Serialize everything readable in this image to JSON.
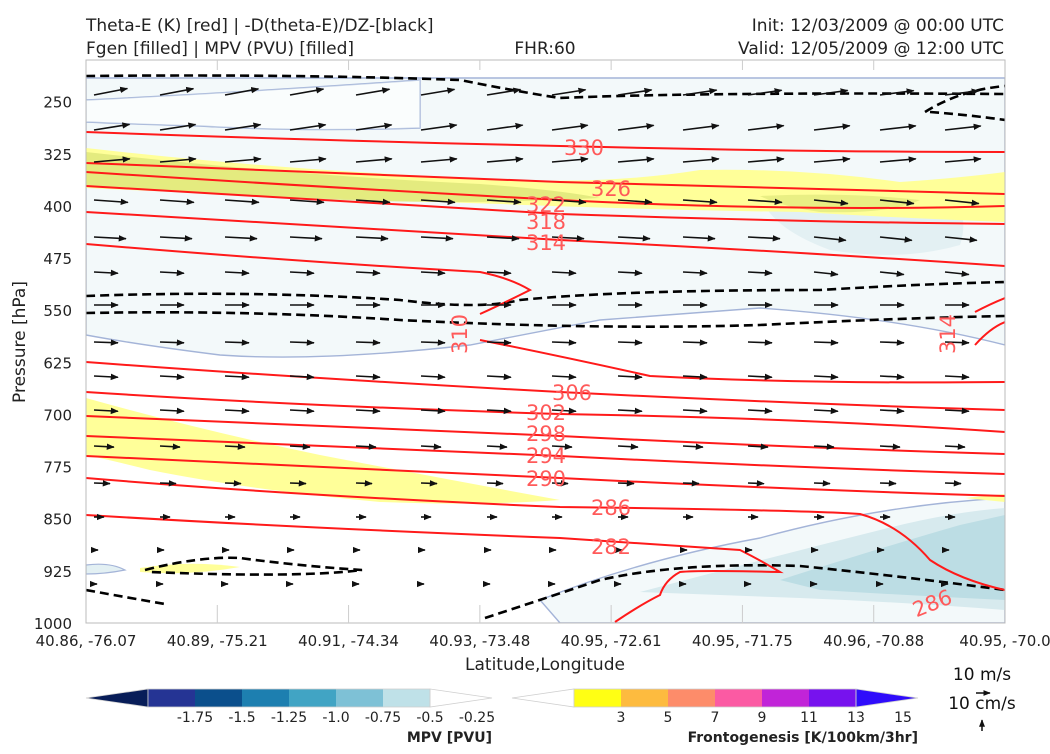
{
  "header": {
    "title_left_1": "Theta-E (K) [red] | -D(theta-E)/DZ-[black]",
    "title_left_2": "Fgen [filled] | MPV (PVU) [filled]",
    "title_center": "FHR:60",
    "title_right_1": "Init: 12/03/2009 @ 00:00 UTC",
    "title_right_2": "Valid: 12/05/2009 @ 12:00 UTC"
  },
  "colors": {
    "theta_e": "#ff1a1a",
    "theta_e_label": "#ff5a5a",
    "mpv_line": "#a4b4d8",
    "mpv_fill_light": "#f3f9fa",
    "mpv_fill_mid": "#d7eaee",
    "mpv_fill_dark": "#bcdde4",
    "fgen_yellow": "#ffff99",
    "fgen_green": "#dfe87a",
    "arrow": "#111111"
  },
  "chart_data": {
    "type": "cross-section",
    "xlabel": "Latitude,Longitude",
    "ylabel": "Pressure [hPa]",
    "y_ticks": [
      250,
      325,
      400,
      475,
      550,
      625,
      700,
      775,
      850,
      925,
      1000
    ],
    "ylim": [
      1000,
      190
    ],
    "x_ticks": [
      "40.86, -76.07",
      "40.89, -75.21",
      "40.91, -74.34",
      "40.93, -73.48",
      "40.95, -72.61",
      "40.95, -71.75",
      "40.96, -70.88",
      "40.95, -70.0"
    ],
    "theta_e_labels": [
      "330",
      "326",
      "322",
      "318",
      "314",
      "310",
      "314",
      "306",
      "302",
      "298",
      "294",
      "290",
      "286",
      "282",
      "286"
    ],
    "wind_reference": {
      "horizontal": "10 m/s",
      "vertical": "10 cm/s"
    }
  },
  "colorbars": {
    "mpv": {
      "label": "MPV [PVU]",
      "ticks": [
        "-1.75",
        "-1.5",
        "-1.25",
        "-1.0",
        "-0.75",
        "-0.5",
        "-0.25"
      ],
      "colors": [
        "#081d58",
        "#253494",
        "#0b4f8c",
        "#1d7fb0",
        "#41a4c4",
        "#7ec1d6",
        "#bfe1e8",
        "#ffffff"
      ]
    },
    "fgen": {
      "label": "Frontogenesis [K/100km/3hr]",
      "ticks": [
        "3",
        "5",
        "7",
        "9",
        "11",
        "13",
        "15"
      ],
      "colors": [
        "#ffffff",
        "#ffff14",
        "#fdbb3f",
        "#fd8c6a",
        "#fb5aa3",
        "#c124d8",
        "#7712ee",
        "#2f0cfb"
      ]
    }
  }
}
